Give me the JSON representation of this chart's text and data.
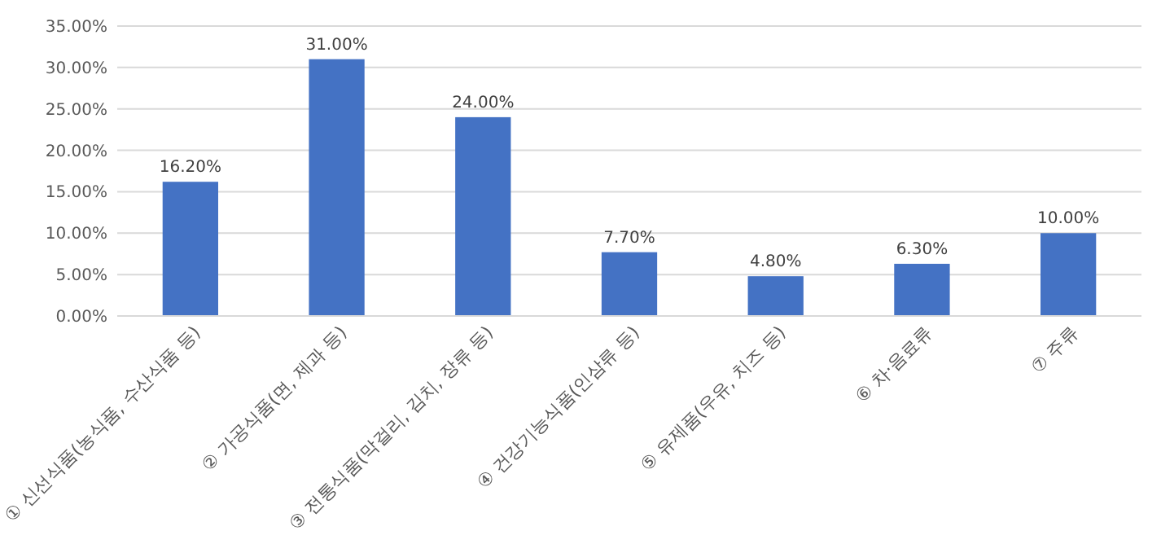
{
  "chart_data": {
    "type": "bar",
    "categories": [
      "① 신선식품(농식품, 수산식품 등)",
      "② 가공식품(면, 제과 등)",
      "③ 전통식품(막걸리, 김치, 장류 등)",
      "④ 건강기능식품(인삼류 등)",
      "⑤ 유제품(우유, 치즈 등)",
      "⑥ 차·음료류",
      "⑦ 주류"
    ],
    "values": [
      16.2,
      31,
      24,
      7.7,
      4.8,
      6.3,
      10
    ],
    "value_labels": [
      "16.20%",
      "31.00%",
      "24.00%",
      "7.70%",
      "4.80%",
      "6.30%",
      "10.00%"
    ],
    "color": "#4472c4",
    "ylim": [
      0,
      35
    ],
    "yticks": [
      {
        "value": 0,
        "label": "0.00%"
      },
      {
        "value": 5,
        "label": "5.00%"
      },
      {
        "value": 10,
        "label": "10.00%"
      },
      {
        "value": 15,
        "label": "15.00%"
      },
      {
        "value": 20,
        "label": "20.00%"
      },
      {
        "value": 25,
        "label": "25.00%"
      },
      {
        "value": 30,
        "label": "30.00%"
      },
      {
        "value": 35,
        "label": "35.00%"
      }
    ],
    "grid": true
  }
}
